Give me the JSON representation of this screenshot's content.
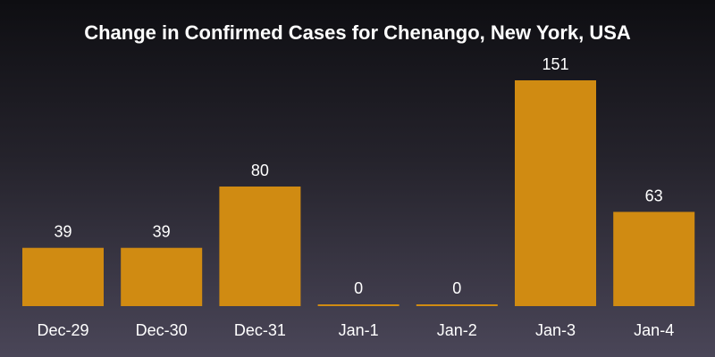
{
  "chart_data": {
    "type": "bar",
    "title": "Change in Confirmed Cases for Chenango, New York, USA",
    "xlabel": "",
    "ylabel": "",
    "categories": [
      "Dec-29",
      "Dec-30",
      "Dec-31",
      "Jan-1",
      "Jan-2",
      "Jan-3",
      "Jan-4"
    ],
    "values": [
      39,
      39,
      80,
      0,
      0,
      151,
      63
    ],
    "value_labels": [
      "39",
      "39",
      "80",
      "0",
      "0",
      "151",
      "63"
    ],
    "ylim": [
      0,
      151
    ],
    "grid": false,
    "bar_color": "#d08b12",
    "background_colors": [
      "#0e0e12",
      "#4a4658"
    ]
  }
}
